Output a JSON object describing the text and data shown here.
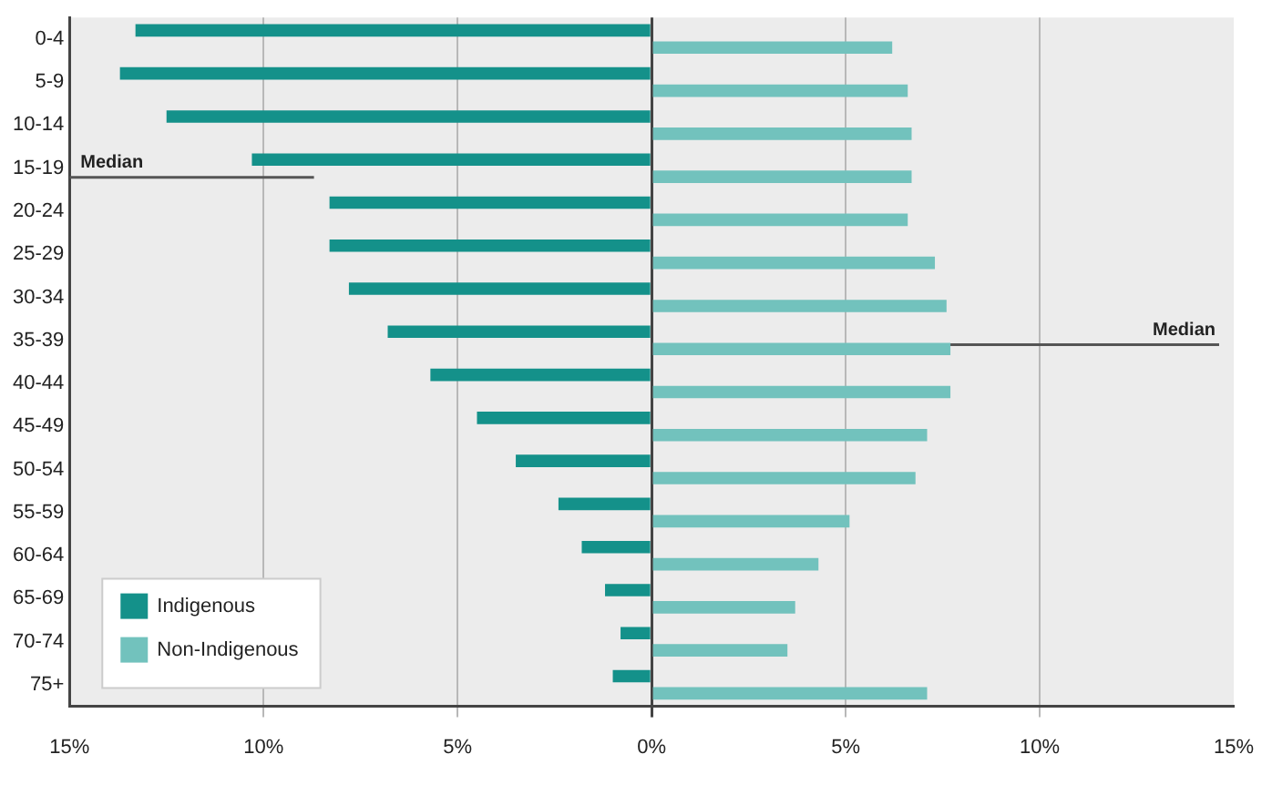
{
  "chart_data": {
    "type": "bar",
    "orientation": "horizontal",
    "categories": [
      "0-4",
      "5-9",
      "10-14",
      "15-19",
      "20-24",
      "25-29",
      "30-34",
      "35-39",
      "40-44",
      "45-49",
      "50-54",
      "55-59",
      "60-64",
      "65-69",
      "70-74",
      "75+"
    ],
    "series": [
      {
        "name": "Indigenous",
        "color": "#14918a",
        "values": [
          -13.3,
          -13.7,
          -12.5,
          -10.3,
          -8.3,
          -8.3,
          -7.8,
          -6.8,
          -5.7,
          -4.5,
          -3.5,
          -2.4,
          -1.8,
          -1.2,
          -0.8,
          -1.0
        ]
      },
      {
        "name": "Non-Indigenous",
        "color": "#72c2bd",
        "values": [
          6.2,
          6.6,
          6.7,
          6.7,
          6.6,
          7.3,
          7.6,
          7.7,
          7.7,
          7.1,
          6.8,
          5.1,
          4.3,
          3.7,
          3.5,
          7.1
        ]
      }
    ],
    "xlim": [
      -15,
      15
    ],
    "xticks": [
      {
        "value": -15,
        "label": "15%"
      },
      {
        "value": -10,
        "label": "10%"
      },
      {
        "value": -5,
        "label": "5%"
      },
      {
        "value": 0,
        "label": "0%"
      },
      {
        "value": 5,
        "label": "5%"
      },
      {
        "value": 10,
        "label": "10%"
      },
      {
        "value": 15,
        "label": "15%"
      }
    ],
    "annotations": [
      "Median",
      {
        "text": "Median",
        "x": 7.7,
        "y": "35-39"
      }
    ],
    "grid": "x",
    "legend": "bottom left"
  }
}
